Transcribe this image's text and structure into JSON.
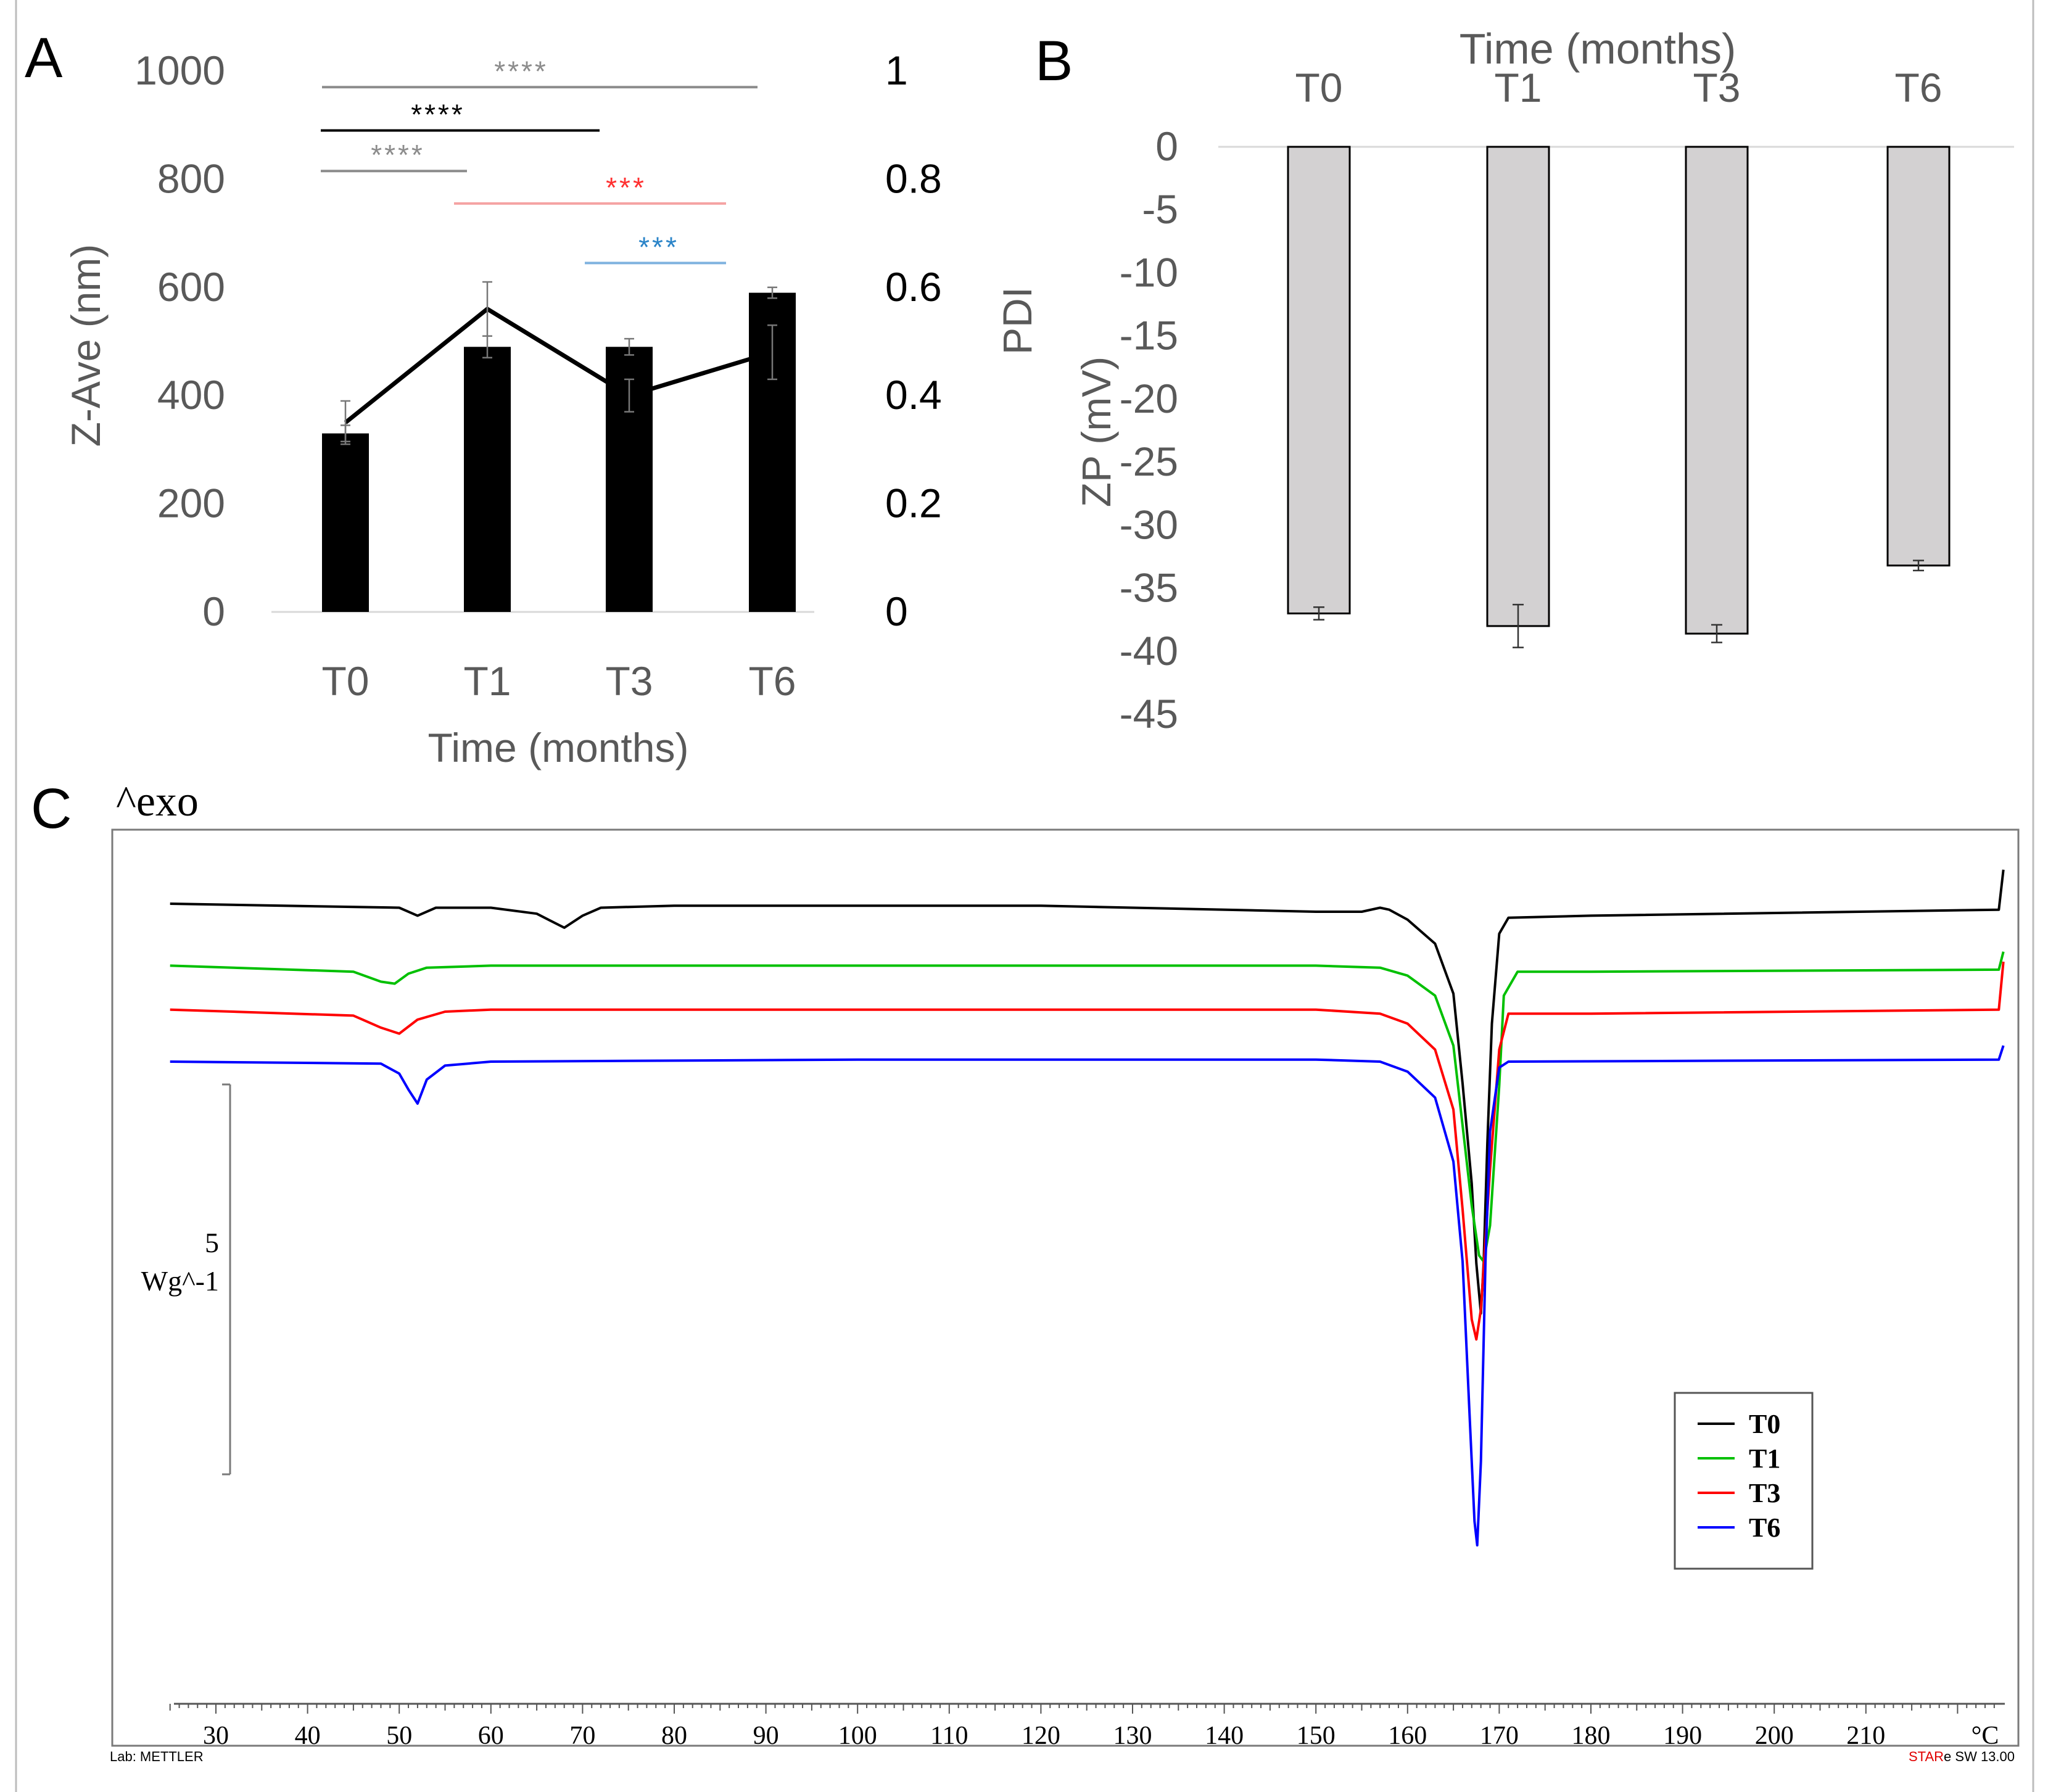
{
  "colors": {
    "axis_text": "#595959",
    "bar_a": "#000000",
    "bar_b": "#d3d1d2",
    "sig_gray": "#8c8c8c",
    "sig_black": "#000000",
    "sig_red": "#ff3030",
    "sig_blue": "#2a84c8",
    "sig_line_red": "#f5a3a3",
    "sig_line_blue": "#7fb2df",
    "T0": "#000000",
    "T1": "#00c000",
    "T3": "#ff0000",
    "T6": "#0000ff"
  },
  "chart_data": [
    {
      "panel": "A",
      "type": "bar+line",
      "categories": [
        "T0",
        "T1",
        "T3",
        "T6"
      ],
      "xlabel": "Time (months)",
      "ylabel": "Z-Ave (nm)",
      "y2label": "PDI",
      "ylim": [
        0,
        1000
      ],
      "y_ticks": [
        "0",
        "200",
        "400",
        "600",
        "800",
        "1000"
      ],
      "y2lim": [
        0,
        1
      ],
      "y2_ticks": [
        "0",
        "0.2",
        "0.4",
        "0.6",
        "0.8",
        "1"
      ],
      "series": [
        {
          "name": "Z-Ave (nm)",
          "kind": "bar",
          "values": [
            330,
            490,
            490,
            590
          ],
          "errors": [
            15,
            20,
            15,
            10
          ]
        },
        {
          "name": "PDI",
          "kind": "line",
          "values": [
            0.35,
            0.56,
            0.4,
            0.48
          ],
          "errors": [
            0.04,
            0.05,
            0.03,
            0.05
          ]
        }
      ],
      "significance": [
        {
          "label": "****",
          "from": 0,
          "to": 3,
          "level": 970,
          "color": "sig_gray"
        },
        {
          "label": "****",
          "from": 0,
          "to": 2,
          "level": 890,
          "color": "sig_black"
        },
        {
          "label": "****",
          "from": 0,
          "to": 1,
          "level": 815,
          "color": "sig_gray"
        },
        {
          "label": "***",
          "from": 1,
          "to": 3,
          "level": 755,
          "color": "sig_red"
        },
        {
          "label": "***",
          "from": 2,
          "to": 3,
          "level": 645,
          "color": "sig_blue"
        }
      ]
    },
    {
      "panel": "B",
      "type": "bar",
      "categories": [
        "T0",
        "T1",
        "T3",
        "T6"
      ],
      "xlabel": "Time (months)",
      "ylabel": "ZP (mV)",
      "ylim": [
        -45,
        0
      ],
      "y_ticks": [
        "0",
        "-5",
        "-10",
        "-15",
        "-20",
        "-25",
        "-30",
        "-35",
        "-40",
        "-45"
      ],
      "values": [
        -37.0,
        -38.0,
        -38.6,
        -33.2
      ],
      "errors": [
        0.5,
        1.7,
        0.7,
        0.4
      ]
    },
    {
      "panel": "C",
      "type": "line",
      "title": "^exo",
      "xlabel": "°C",
      "xlim": [
        25,
        225
      ],
      "x_ticks": [
        "30",
        "40",
        "50",
        "60",
        "70",
        "80",
        "90",
        "100",
        "110",
        "120",
        "130",
        "140",
        "150",
        "160",
        "170",
        "180",
        "190",
        "200",
        "210"
      ],
      "scale_bar": {
        "value": "5",
        "unit": "Wg^-1"
      },
      "legend": [
        "T0",
        "T1",
        "T3",
        "T6"
      ],
      "legend_placement": "bottom-right",
      "footer_left": "Lab: METTLER",
      "footer_right_brand": "STAR",
      "footer_right_rest": "e SW 13.00",
      "series": [
        {
          "name": "T0",
          "baseline": 0.0,
          "x": [
            25,
            50,
            52,
            54,
            60,
            65,
            68,
            70,
            72,
            80,
            120,
            150,
            155,
            157,
            158,
            160,
            163,
            165,
            166,
            167,
            167.5,
            168,
            168.3,
            168.7,
            169.2,
            170,
            171,
            180,
            224.5,
            225
          ],
          "y": [
            0,
            -0.2,
            -0.6,
            -0.2,
            -0.2,
            -0.5,
            -1.2,
            -0.6,
            -0.2,
            -0.1,
            -0.1,
            -0.4,
            -0.4,
            -0.2,
            -0.3,
            -0.8,
            -2.0,
            -4.5,
            -9,
            -14,
            -18,
            -20.5,
            -18,
            -12,
            -6,
            -1.5,
            -0.7,
            -0.6,
            -0.3,
            1.7
          ]
        },
        {
          "name": "T1",
          "baseline": -3.1,
          "x": [
            25,
            45,
            48,
            49.5,
            51,
            53,
            60,
            100,
            150,
            157,
            160,
            163,
            165,
            166,
            167,
            167.8,
            168.3,
            169,
            170,
            170.5,
            172,
            180,
            224.5,
            225
          ],
          "y": [
            0,
            -0.3,
            -0.8,
            -0.9,
            -0.4,
            -0.1,
            0,
            0,
            0,
            -0.1,
            -0.5,
            -1.5,
            -4,
            -8,
            -12,
            -14.5,
            -14.8,
            -13,
            -6,
            -1.5,
            -0.3,
            -0.3,
            -0.2,
            0.7
          ]
        },
        {
          "name": "T3",
          "baseline": -5.3,
          "x": [
            25,
            45,
            48,
            50,
            52,
            55,
            60,
            100,
            150,
            157,
            160,
            163,
            165,
            166,
            167,
            167.5,
            168,
            169,
            170,
            171,
            180,
            224.5,
            225
          ],
          "y": [
            0,
            -0.3,
            -0.9,
            -1.2,
            -0.5,
            -0.1,
            0,
            0,
            0,
            -0.2,
            -0.7,
            -2.0,
            -5,
            -10,
            -15.5,
            -16.5,
            -15,
            -8,
            -2,
            -0.2,
            -0.2,
            0,
            2.4
          ]
        },
        {
          "name": "T6",
          "baseline": -7.9,
          "x": [
            25,
            48,
            50,
            51,
            52,
            53,
            55,
            60,
            100,
            150,
            157,
            160,
            163,
            165,
            166,
            166.8,
            167.3,
            167.6,
            168,
            168.5,
            169,
            170,
            171,
            224.5,
            225
          ],
          "y": [
            0,
            -0.1,
            -0.6,
            -1.4,
            -2.1,
            -0.9,
            -0.2,
            0,
            0.1,
            0.1,
            0,
            -0.5,
            -1.8,
            -5,
            -10,
            -18,
            -23,
            -24.2,
            -20,
            -10,
            -3.5,
            -0.3,
            0,
            0.1,
            0.8
          ]
        }
      ]
    }
  ]
}
